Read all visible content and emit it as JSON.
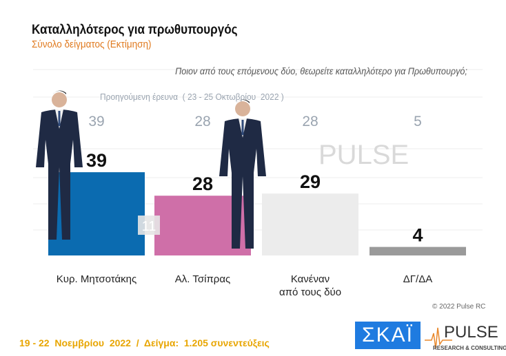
{
  "header": {
    "title": "Καταλληλότερος για πρωθυπουργός",
    "subtitle": "Σύνολο δείγματος   (Εκτίμηση)"
  },
  "question": "Ποιον από τους επόμενους δύο, θεωρείτε καταλληλότερο για Πρωθυπουργό;",
  "previous_label": "Προηγούμενη έρευνα  ( 23 - 25 Οκτωβρίου  2022 )",
  "footer": "19 - 22  Νοεμβρίου  2022  /  Δείγμα:  1.205 συνεντεύξεις",
  "copyright": "© 2022 Pulse RC",
  "logos": {
    "skai": "ΣΚΑΪ",
    "pulse": "PULSE",
    "pulse_sub": "RESEARCH & CONSULTING"
  },
  "watermark": "PULSE",
  "chart_data": {
    "type": "bar",
    "categories": [
      [
        "Κυρ. Μητσοτάκης"
      ],
      [
        "Αλ. Τσίπρας"
      ],
      [
        "Κανέναν",
        "από τους δύο"
      ],
      [
        "ΔΓ/ΔΑ"
      ]
    ],
    "values": [
      39,
      28,
      29,
      4
    ],
    "previous_values": [
      39,
      28,
      28,
      5
    ],
    "annotations": [
      "11"
    ],
    "colors": [
      "#0b6bb0",
      "#cf6fa8",
      "#ececec",
      "#9a9a9a"
    ],
    "ylim": [
      0,
      45
    ],
    "grid": true
  }
}
